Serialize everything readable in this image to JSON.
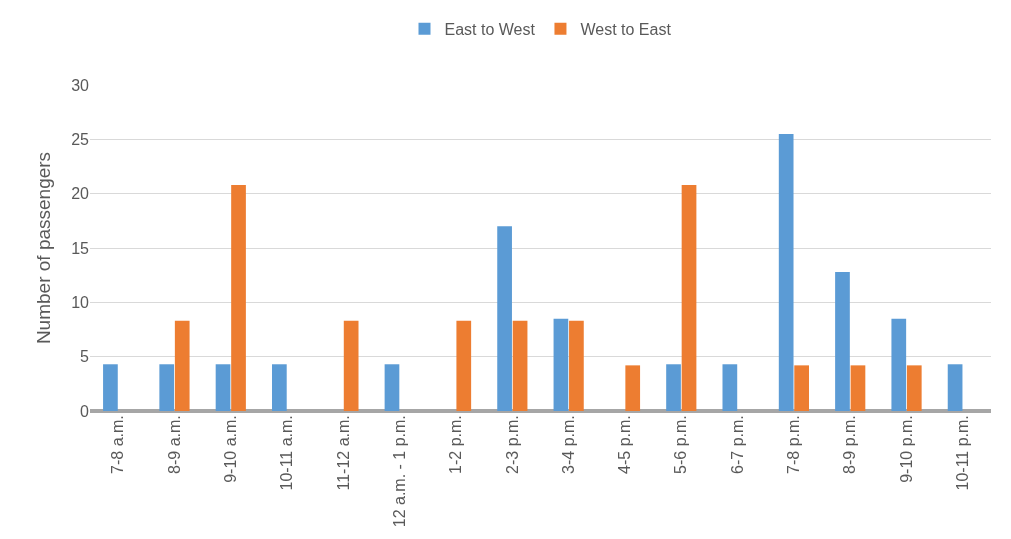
{
  "chart_data": {
    "type": "bar",
    "ylabel": "Number of passengers",
    "categories": [
      "7-8 a.m.",
      "8-9 a.m.",
      "9-10 a.m.",
      "10-11 a.m.",
      "11-12 a.m.",
      "12 a.m. - 1 p.m.",
      "1-2 p.m.",
      "2-3 p.m.",
      "3-4 p.m.",
      "4-5 p.m.",
      "5-6 p.m.",
      "6-7 p.m.",
      "7-8 p.m.",
      "8-9 p.m.",
      "9-10 p.m.",
      "10-11 p.m."
    ],
    "series": [
      {
        "name": "East to West",
        "color": "#5b9bd5",
        "values": [
          4.3,
          4.3,
          4.3,
          4.3,
          0,
          4.3,
          0,
          17,
          8.5,
          0,
          4.3,
          4.3,
          25.5,
          12.8,
          8.5,
          4.3
        ]
      },
      {
        "name": "West to East",
        "color": "#ed7d31",
        "values": [
          0,
          8.3,
          20.8,
          0,
          8.3,
          0,
          8.3,
          8.3,
          8.3,
          4.2,
          20.8,
          0,
          4.2,
          4.2,
          4.2,
          0
        ]
      }
    ],
    "ylim": [
      0,
      30
    ],
    "yticks": [
      0,
      5,
      10,
      15,
      20,
      25,
      30
    ],
    "grid": "y",
    "legend": "top"
  }
}
